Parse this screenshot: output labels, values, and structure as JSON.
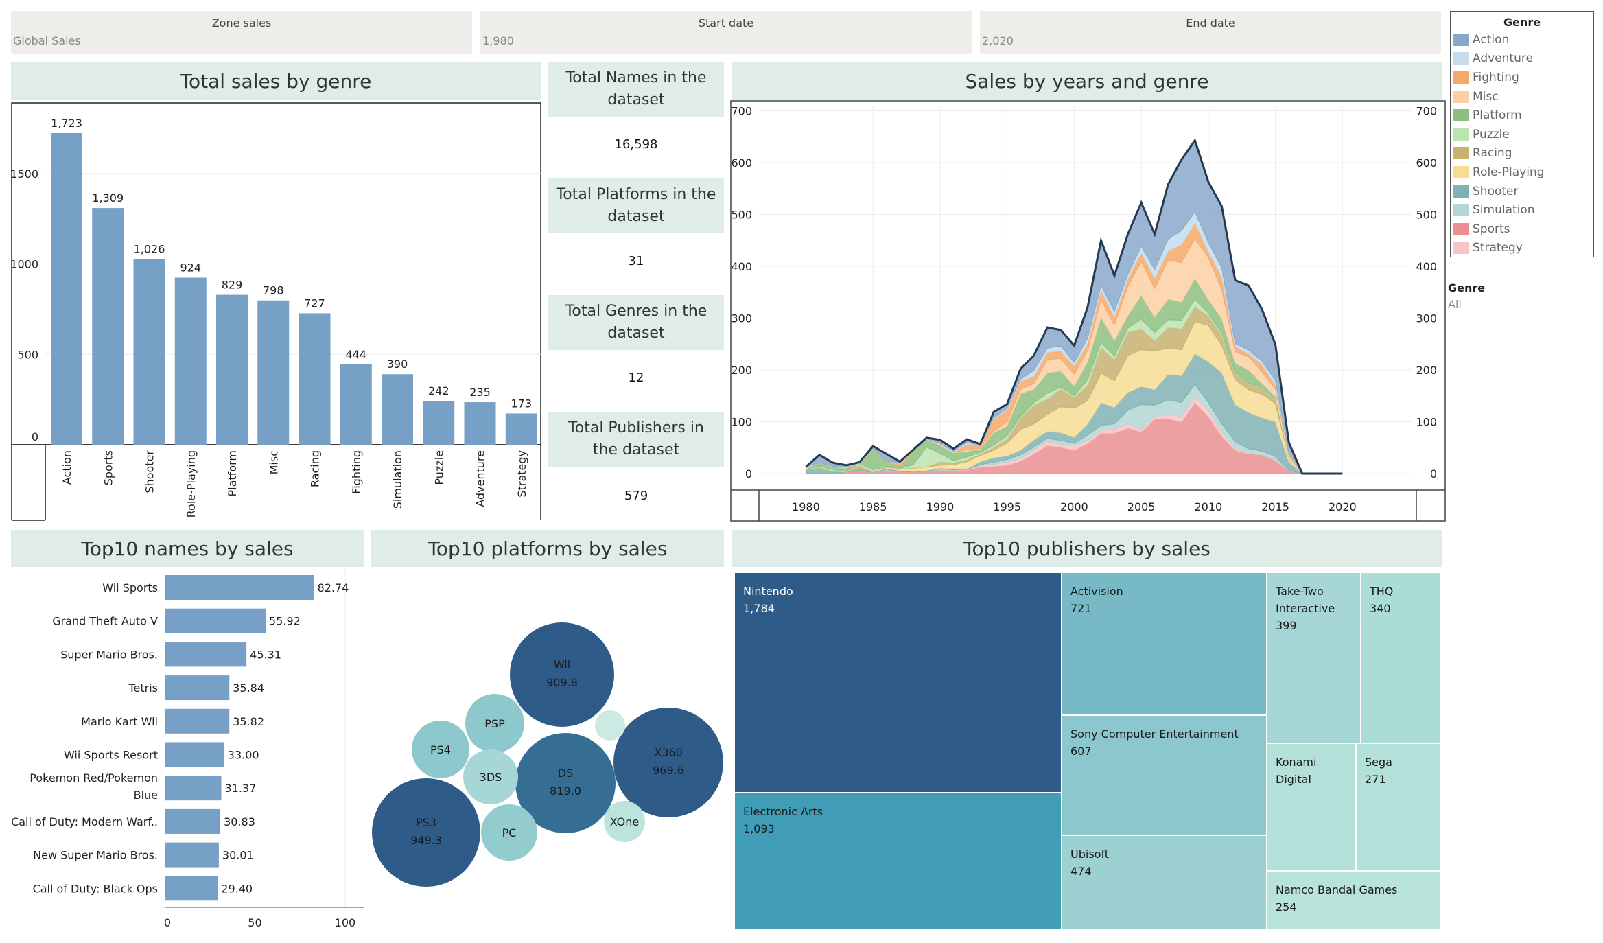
{
  "filters": {
    "zone": {
      "label": "Zone sales",
      "value": "Global Sales"
    },
    "start": {
      "label": "Start date",
      "value": "1,980"
    },
    "end": {
      "label": "End date",
      "value": "2,020"
    }
  },
  "legend": {
    "title": "Genre",
    "items": [
      {
        "name": "Action",
        "color": "#8aa8ca"
      },
      {
        "name": "Adventure",
        "color": "#c5dcef"
      },
      {
        "name": "Fighting",
        "color": "#f5a967"
      },
      {
        "name": "Misc",
        "color": "#fcd0a5"
      },
      {
        "name": "Platform",
        "color": "#8dc07f"
      },
      {
        "name": "Puzzle",
        "color": "#bde3b0"
      },
      {
        "name": "Racing",
        "color": "#c7b270"
      },
      {
        "name": "Role-Playing",
        "color": "#f7dc94"
      },
      {
        "name": "Shooter",
        "color": "#80b1b3"
      },
      {
        "name": "Simulation",
        "color": "#b3d6d4"
      },
      {
        "name": "Sports",
        "color": "#ea8f92"
      },
      {
        "name": "Strategy",
        "color": "#fac3c4"
      }
    ],
    "filter_label": "Genre",
    "filter_value": "All"
  },
  "titles": {
    "genre_sales": "Total sales by genre",
    "years_genre": "Sales by years and genre",
    "top_names": "Top10 names by sales",
    "top_platforms": "Top10 platforms by sales",
    "top_publishers": "Top10 publishers by sales"
  },
  "kpis": [
    {
      "label": "Total Names in the dataset",
      "value": "16,598"
    },
    {
      "label": "Total Platforms in the dataset",
      "value": "31"
    },
    {
      "label": "Total Genres in the dataset",
      "value": "12"
    },
    {
      "label": "Total Publishers in the dataset",
      "value": "579"
    }
  ],
  "chart_data": [
    {
      "type": "bar",
      "title": "Total sales by genre",
      "categories": [
        "Action",
        "Sports",
        "Shooter",
        "Role-Playing",
        "Platform",
        "Misc",
        "Racing",
        "Fighting",
        "Simulation",
        "Puzzle",
        "Adventure",
        "Strategy"
      ],
      "values": [
        1723,
        1309,
        1026,
        924,
        829,
        798,
        727,
        444,
        390,
        242,
        235,
        173
      ],
      "value_labels": [
        "1,723",
        "1,309",
        "1,026",
        "924",
        "829",
        "798",
        "727",
        "444",
        "390",
        "242",
        "235",
        "173"
      ],
      "yticks": [
        "0",
        "500",
        "1000",
        "1500"
      ],
      "ylim": [
        0,
        1890
      ],
      "color": "#76a0c6"
    },
    {
      "type": "area",
      "title": "Sales by years and genre",
      "stacked": true,
      "x": [
        1980,
        1981,
        1982,
        1983,
        1984,
        1985,
        1986,
        1987,
        1988,
        1989,
        1990,
        1991,
        1992,
        1993,
        1994,
        1995,
        1996,
        1997,
        1998,
        1999,
        2000,
        2001,
        2002,
        2003,
        2004,
        2005,
        2006,
        2007,
        2008,
        2009,
        2010,
        2011,
        2012,
        2013,
        2014,
        2015,
        2016,
        2017,
        2018,
        2019,
        2020
      ],
      "xticks": [
        "1980",
        "1985",
        "1990",
        "1995",
        "2000",
        "2005",
        "2010",
        "2015",
        "2020"
      ],
      "yticks": [
        "0",
        "100",
        "200",
        "300",
        "400",
        "500",
        "600",
        "700"
      ],
      "ylim": [
        0,
        710
      ],
      "series": [
        {
          "name": "Sports",
          "values": [
            1,
            1,
            1,
            3,
            6,
            2,
            6,
            4,
            3,
            5,
            7,
            5,
            7,
            13,
            14,
            16,
            24,
            38,
            54,
            51,
            45,
            58,
            78,
            78,
            88,
            80,
            105,
            106,
            100,
            137,
            110,
            72,
            45,
            38,
            36,
            25,
            5,
            0,
            0,
            0,
            0
          ]
        },
        {
          "name": "Strategy",
          "values": [
            0,
            0,
            0,
            0,
            0,
            0,
            0,
            0,
            0,
            0,
            0,
            1,
            1,
            3,
            4,
            6,
            5,
            7,
            8,
            6,
            9,
            5,
            5,
            7,
            8,
            5,
            5,
            9,
            10,
            12,
            12,
            9,
            3,
            2,
            1,
            2,
            1,
            0,
            0,
            0,
            0
          ]
        },
        {
          "name": "Simulation",
          "values": [
            0,
            0,
            0,
            0,
            0,
            0,
            2,
            0,
            0,
            0,
            2,
            1,
            0,
            1,
            4,
            5,
            7,
            6,
            6,
            7,
            4,
            11,
            10,
            11,
            26,
            48,
            22,
            27,
            27,
            23,
            15,
            15,
            13,
            8,
            6,
            6,
            0,
            0,
            0,
            0,
            0
          ]
        },
        {
          "name": "Shooter",
          "values": [
            7,
            10,
            3,
            0,
            4,
            1,
            2,
            2,
            1,
            1,
            2,
            2,
            1,
            6,
            9,
            7,
            9,
            14,
            14,
            15,
            12,
            22,
            44,
            32,
            35,
            35,
            30,
            50,
            52,
            60,
            79,
            99,
            72,
            70,
            65,
            67,
            17,
            0,
            0,
            0,
            0
          ]
        },
        {
          "name": "Role-Playing",
          "values": [
            0,
            0,
            0,
            0,
            0,
            0,
            2,
            4,
            6,
            7,
            5,
            8,
            14,
            12,
            14,
            25,
            40,
            31,
            32,
            50,
            56,
            45,
            57,
            51,
            71,
            71,
            75,
            50,
            50,
            61,
            70,
            52,
            48,
            44,
            45,
            35,
            7,
            0,
            0,
            0,
            0
          ]
        },
        {
          "name": "Racing",
          "values": [
            0,
            1,
            1,
            0,
            6,
            0,
            2,
            0,
            1,
            0,
            7,
            4,
            4,
            3,
            6,
            8,
            22,
            36,
            30,
            35,
            21,
            30,
            50,
            41,
            45,
            40,
            20,
            40,
            41,
            30,
            19,
            20,
            12,
            11,
            11,
            7,
            0,
            0,
            0,
            0,
            0
          ]
        },
        {
          "name": "Puzzle",
          "values": [
            1,
            2,
            3,
            1,
            3,
            4,
            0,
            0,
            6,
            38,
            16,
            4,
            5,
            3,
            4,
            6,
            3,
            5,
            11,
            3,
            3,
            10,
            9,
            7,
            8,
            19,
            15,
            15,
            16,
            13,
            4,
            4,
            1,
            1,
            1,
            1,
            0,
            0,
            0,
            0,
            0
          ]
        },
        {
          "name": "Platform",
          "values": [
            0,
            7,
            5,
            7,
            1,
            41,
            10,
            3,
            27,
            15,
            16,
            15,
            11,
            6,
            24,
            19,
            44,
            26,
            39,
            31,
            19,
            35,
            49,
            30,
            24,
            46,
            30,
            40,
            35,
            41,
            27,
            28,
            19,
            26,
            9,
            6,
            1,
            0,
            0,
            0,
            0
          ]
        },
        {
          "name": "Misc",
          "values": [
            3,
            0,
            1,
            2,
            1,
            0,
            0,
            0,
            0,
            1,
            3,
            1,
            3,
            2,
            3,
            8,
            8,
            11,
            26,
            24,
            23,
            21,
            33,
            30,
            56,
            65,
            55,
            75,
            76,
            76,
            81,
            56,
            22,
            25,
            22,
            14,
            4,
            0,
            0,
            0,
            0
          ]
        },
        {
          "name": "Fighting",
          "values": [
            1,
            0,
            0,
            0,
            0,
            1,
            0,
            6,
            0,
            0,
            0,
            0,
            11,
            5,
            23,
            23,
            16,
            14,
            14,
            15,
            15,
            14,
            19,
            15,
            15,
            17,
            20,
            18,
            35,
            31,
            12,
            25,
            10,
            7,
            15,
            8,
            5,
            0,
            0,
            0,
            0
          ]
        },
        {
          "name": "Adventure",
          "values": [
            0,
            0,
            0,
            0,
            0,
            0,
            0,
            2,
            0,
            0,
            0,
            2,
            3,
            0,
            2,
            3,
            4,
            11,
            8,
            9,
            7,
            10,
            9,
            11,
            9,
            12,
            17,
            22,
            27,
            21,
            17,
            17,
            6,
            6,
            6,
            8,
            1,
            0,
            0,
            0,
            0
          ]
        },
        {
          "name": "Action",
          "values": [
            0,
            15,
            7,
            3,
            1,
            4,
            14,
            2,
            2,
            2,
            7,
            5,
            6,
            3,
            12,
            8,
            20,
            29,
            40,
            31,
            33,
            60,
            87,
            69,
            77,
            85,
            68,
            106,
            137,
            138,
            117,
            119,
            122,
            125,
            100,
            70,
            19,
            0,
            0,
            0,
            0
          ]
        }
      ]
    },
    {
      "type": "bar",
      "orientation": "horizontal",
      "title": "Top10 names by sales",
      "categories": [
        "Wii Sports",
        "Grand Theft Auto V",
        "Super Mario Bros.",
        "Tetris",
        "Mario Kart Wii",
        "Wii Sports Resort",
        "Pokemon Red/Pokemon Blue",
        "Call of Duty: Modern Warf..",
        "New Super Mario Bros.",
        "Call of Duty: Black Ops"
      ],
      "values": [
        82.74,
        55.92,
        45.31,
        35.84,
        35.82,
        33.0,
        31.37,
        30.83,
        30.01,
        29.4
      ],
      "value_labels": [
        "82.74",
        "55.92",
        "45.31",
        "35.84",
        "35.82",
        "33.00",
        "31.37",
        "30.83",
        "30.01",
        "29.40"
      ],
      "xticks": [
        "0",
        "50",
        "100"
      ],
      "xlim": [
        0,
        108
      ],
      "color": "#76a0c6"
    },
    {
      "type": "bubble",
      "title": "Top10 platforms by sales",
      "bubbles": [
        {
          "name": "Wii",
          "value": 909.8,
          "label": "909.8",
          "color": "#2e5b87"
        },
        {
          "name": "X360",
          "value": 969.6,
          "label": "969.6",
          "color": "#2e5b87"
        },
        {
          "name": "PS3",
          "value": 949.3,
          "label": "949.3",
          "color": "#2e5b87"
        },
        {
          "name": "DS",
          "value": 819.0,
          "label": "819.0",
          "color": "#356d93"
        },
        {
          "name": "PSP",
          "value": 0,
          "label": "",
          "color": "#8dc9cc"
        },
        {
          "name": "PS4",
          "value": 0,
          "label": "",
          "color": "#8dc9cc"
        },
        {
          "name": "3DS",
          "value": 0,
          "label": "",
          "color": "#a6d7d6"
        },
        {
          "name": "PC",
          "value": 0,
          "label": "",
          "color": "#93ccce"
        },
        {
          "name": "XOne",
          "value": 0,
          "label": "",
          "color": "#bde3dd"
        },
        {
          "name": "",
          "value": 0,
          "label": "",
          "color": "#cdeae2"
        }
      ]
    },
    {
      "type": "treemap",
      "title": "Top10 publishers by sales",
      "items": [
        {
          "name": "Nintendo",
          "value": 1784,
          "label": "1,784",
          "color": "#2e5b87"
        },
        {
          "name": "Electronic Arts",
          "value": 1093,
          "label": "1,093",
          "color": "#419db6"
        },
        {
          "name": "Activision",
          "value": 721,
          "label": "721",
          "color": "#77bac5"
        },
        {
          "name": "Sony Computer Entertainment",
          "value": 607,
          "label": "607",
          "color": "#8bc7cd"
        },
        {
          "name": "Ubisoft",
          "value": 474,
          "label": "474",
          "color": "#9cd0d1"
        },
        {
          "name": "Take-Two Interactive",
          "value": 399,
          "label": "399",
          "color": "#a6d7d6"
        },
        {
          "name": "THQ",
          "value": 340,
          "label": "340",
          "color": "#acdcd7"
        },
        {
          "name": "Konami Digital",
          "value": 283,
          "label": "",
          "color": "#b3e0d9"
        },
        {
          "name": "Sega",
          "value": 271,
          "label": "271",
          "color": "#b3e0d9"
        },
        {
          "name": "Namco Bandai Games",
          "value": 254,
          "label": "254",
          "color": "#b8e3da"
        }
      ]
    }
  ]
}
